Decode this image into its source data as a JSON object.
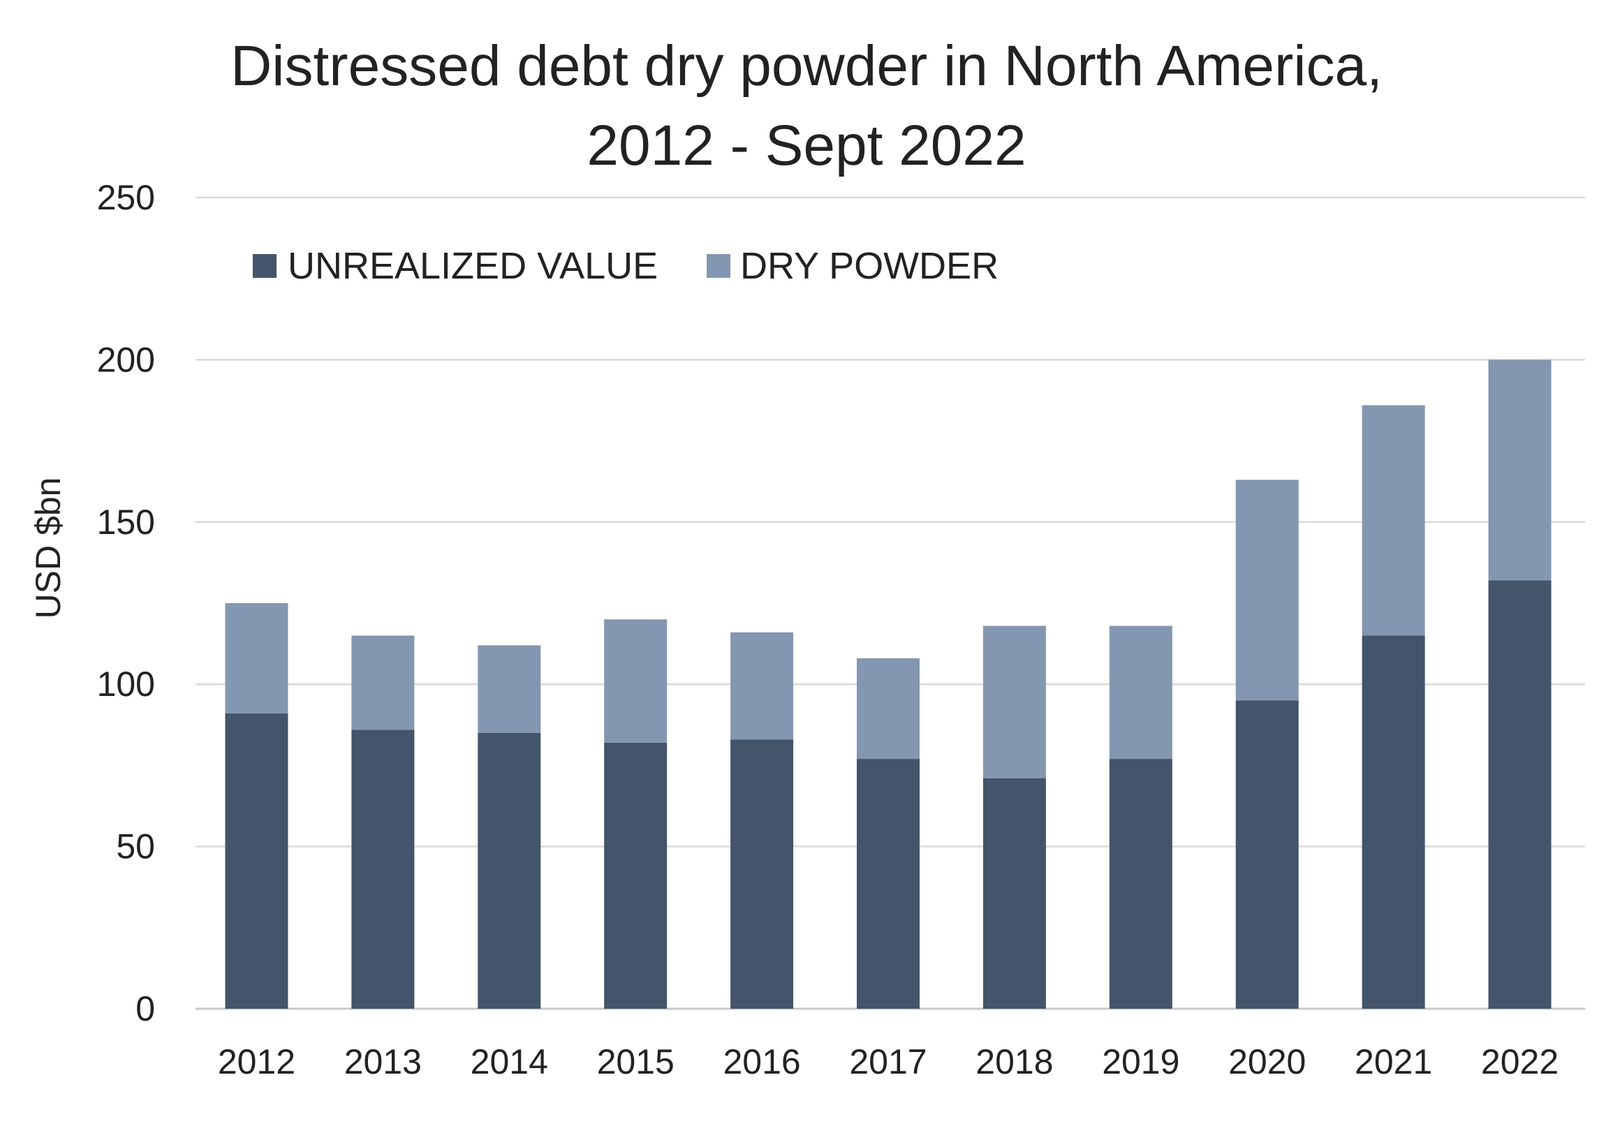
{
  "chart_data": {
    "type": "bar",
    "stacked": true,
    "title": "Distressed debt dry powder in North America,",
    "title_line2": "2012 - Sept 2022",
    "xlabel": "",
    "ylabel": "USD $bn",
    "ylim": [
      0,
      250
    ],
    "yticks": [
      0,
      50,
      100,
      150,
      200,
      250
    ],
    "grid": true,
    "legend_position": "top-left",
    "categories": [
      "2012",
      "2013",
      "2014",
      "2015",
      "2016",
      "2017",
      "2018",
      "2019",
      "2020",
      "2021",
      "2022"
    ],
    "series": [
      {
        "name": "UNREALIZED VALUE",
        "color": "#44546A",
        "values": [
          91,
          86,
          85,
          82,
          83,
          77,
          71,
          77,
          95,
          115,
          132
        ]
      },
      {
        "name": "DRY POWDER",
        "color": "#8497B0",
        "values": [
          34,
          29,
          27,
          38,
          33,
          31,
          47,
          41,
          68,
          71,
          68
        ]
      }
    ]
  }
}
